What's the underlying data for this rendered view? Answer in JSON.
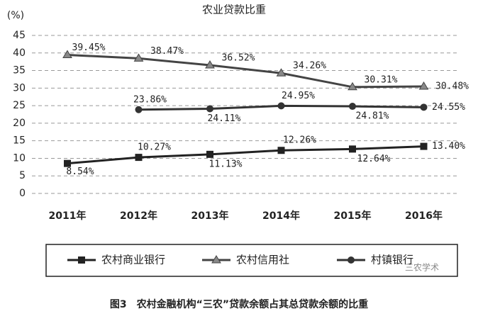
{
  "chart_data": {
    "type": "line",
    "title": "农业贷款比重",
    "y_label": "(%)",
    "categories": [
      "2011年",
      "2012年",
      "2013年",
      "2014年",
      "2015年",
      "2016年"
    ],
    "series": [
      {
        "name": "农村商业银行",
        "color": "#222222",
        "marker": "square",
        "values": [
          8.54,
          10.27,
          11.13,
          12.26,
          12.64,
          13.4
        ],
        "value_labels": [
          "8.54%",
          "10.27%",
          "11.13%",
          "12.26%",
          "12.64%",
          "13.40%"
        ]
      },
      {
        "name": "农村信用社",
        "color": "#444444",
        "marker": "triangle",
        "values": [
          39.45,
          38.47,
          36.52,
          34.26,
          30.31,
          30.48
        ],
        "value_labels": [
          "39.45%",
          "38.47%",
          "36.52%",
          "34.26%",
          "30.31%",
          "30.48%"
        ]
      },
      {
        "name": "村镇银行",
        "color": "#333333",
        "marker": "circle",
        "values": [
          null,
          23.86,
          24.11,
          24.95,
          24.81,
          24.55
        ],
        "value_labels": [
          null,
          "23.86%",
          "24.11%",
          "24.95%",
          "24.81%",
          "24.55%"
        ]
      }
    ],
    "ylim": [
      0,
      45
    ],
    "yticks": [
      0,
      5,
      10,
      15,
      20,
      25,
      30,
      35,
      40,
      45
    ],
    "grid": true,
    "caption": "图3　农村金融机构“三农”贷款余额占其总贷款余额的比重",
    "watermark": "三农学术"
  }
}
